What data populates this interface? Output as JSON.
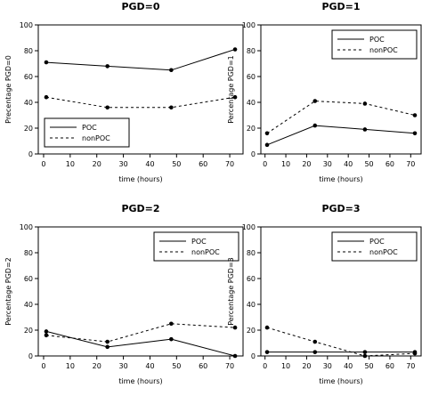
{
  "chart_data": [
    {
      "type": "line",
      "title": "PGD=0",
      "xlabel": "time (hours)",
      "ylabel": "Precentage PGD=0",
      "x": [
        1,
        24,
        48,
        72
      ],
      "xticks": [
        0,
        10,
        20,
        30,
        40,
        50,
        60,
        70
      ],
      "yticks": [
        0,
        20,
        40,
        60,
        80,
        100
      ],
      "xlim": [
        -2,
        75
      ],
      "ylim": [
        0,
        100
      ],
      "legend": "bottom-left",
      "grid": false,
      "series": [
        {
          "name": "POC",
          "dash": "solid",
          "values": [
            71,
            68,
            65,
            81
          ]
        },
        {
          "name": "nonPOC",
          "dash": "dashed",
          "values": [
            44,
            36,
            36,
            44
          ]
        }
      ]
    },
    {
      "type": "line",
      "title": "PGD=1",
      "xlabel": "time (hours)",
      "ylabel": "Percentage PGD=1",
      "x": [
        1,
        24,
        48,
        72
      ],
      "xticks": [
        0,
        10,
        20,
        30,
        40,
        50,
        60,
        70
      ],
      "yticks": [
        0,
        20,
        40,
        60,
        80,
        100
      ],
      "xlim": [
        -2,
        75
      ],
      "ylim": [
        0,
        100
      ],
      "legend": "top-right",
      "grid": false,
      "series": [
        {
          "name": "POC",
          "dash": "solid",
          "values": [
            7,
            22,
            19,
            16
          ]
        },
        {
          "name": "nonPOC",
          "dash": "dashed",
          "values": [
            16,
            41,
            39,
            30
          ]
        }
      ]
    },
    {
      "type": "line",
      "title": "PGD=2",
      "xlabel": "time (hours)",
      "ylabel": "Percentage PGD=2",
      "x": [
        1,
        24,
        48,
        72
      ],
      "xticks": [
        0,
        10,
        20,
        30,
        40,
        50,
        60,
        70
      ],
      "yticks": [
        0,
        20,
        40,
        60,
        80,
        100
      ],
      "xlim": [
        -2,
        75
      ],
      "ylim": [
        0,
        100
      ],
      "legend": "top-right",
      "grid": false,
      "series": [
        {
          "name": "POC",
          "dash": "solid",
          "values": [
            19,
            7,
            13,
            0
          ]
        },
        {
          "name": "nonPOC",
          "dash": "dashed",
          "values": [
            16,
            11,
            25,
            22
          ]
        }
      ]
    },
    {
      "type": "line",
      "title": "PGD=3",
      "xlabel": "time (hours)",
      "ylabel": "Percentage PGD=3",
      "x": [
        1,
        24,
        48,
        72
      ],
      "xticks": [
        0,
        10,
        20,
        30,
        40,
        50,
        60,
        70
      ],
      "yticks": [
        0,
        20,
        40,
        60,
        80,
        100
      ],
      "xlim": [
        -2,
        75
      ],
      "ylim": [
        0,
        100
      ],
      "legend": "top-right",
      "grid": false,
      "series": [
        {
          "name": "POC",
          "dash": "solid",
          "values": [
            3,
            3,
            3,
            3
          ]
        },
        {
          "name": "nonPOC",
          "dash": "dashed",
          "values": [
            22,
            11,
            0,
            2
          ]
        }
      ]
    }
  ]
}
